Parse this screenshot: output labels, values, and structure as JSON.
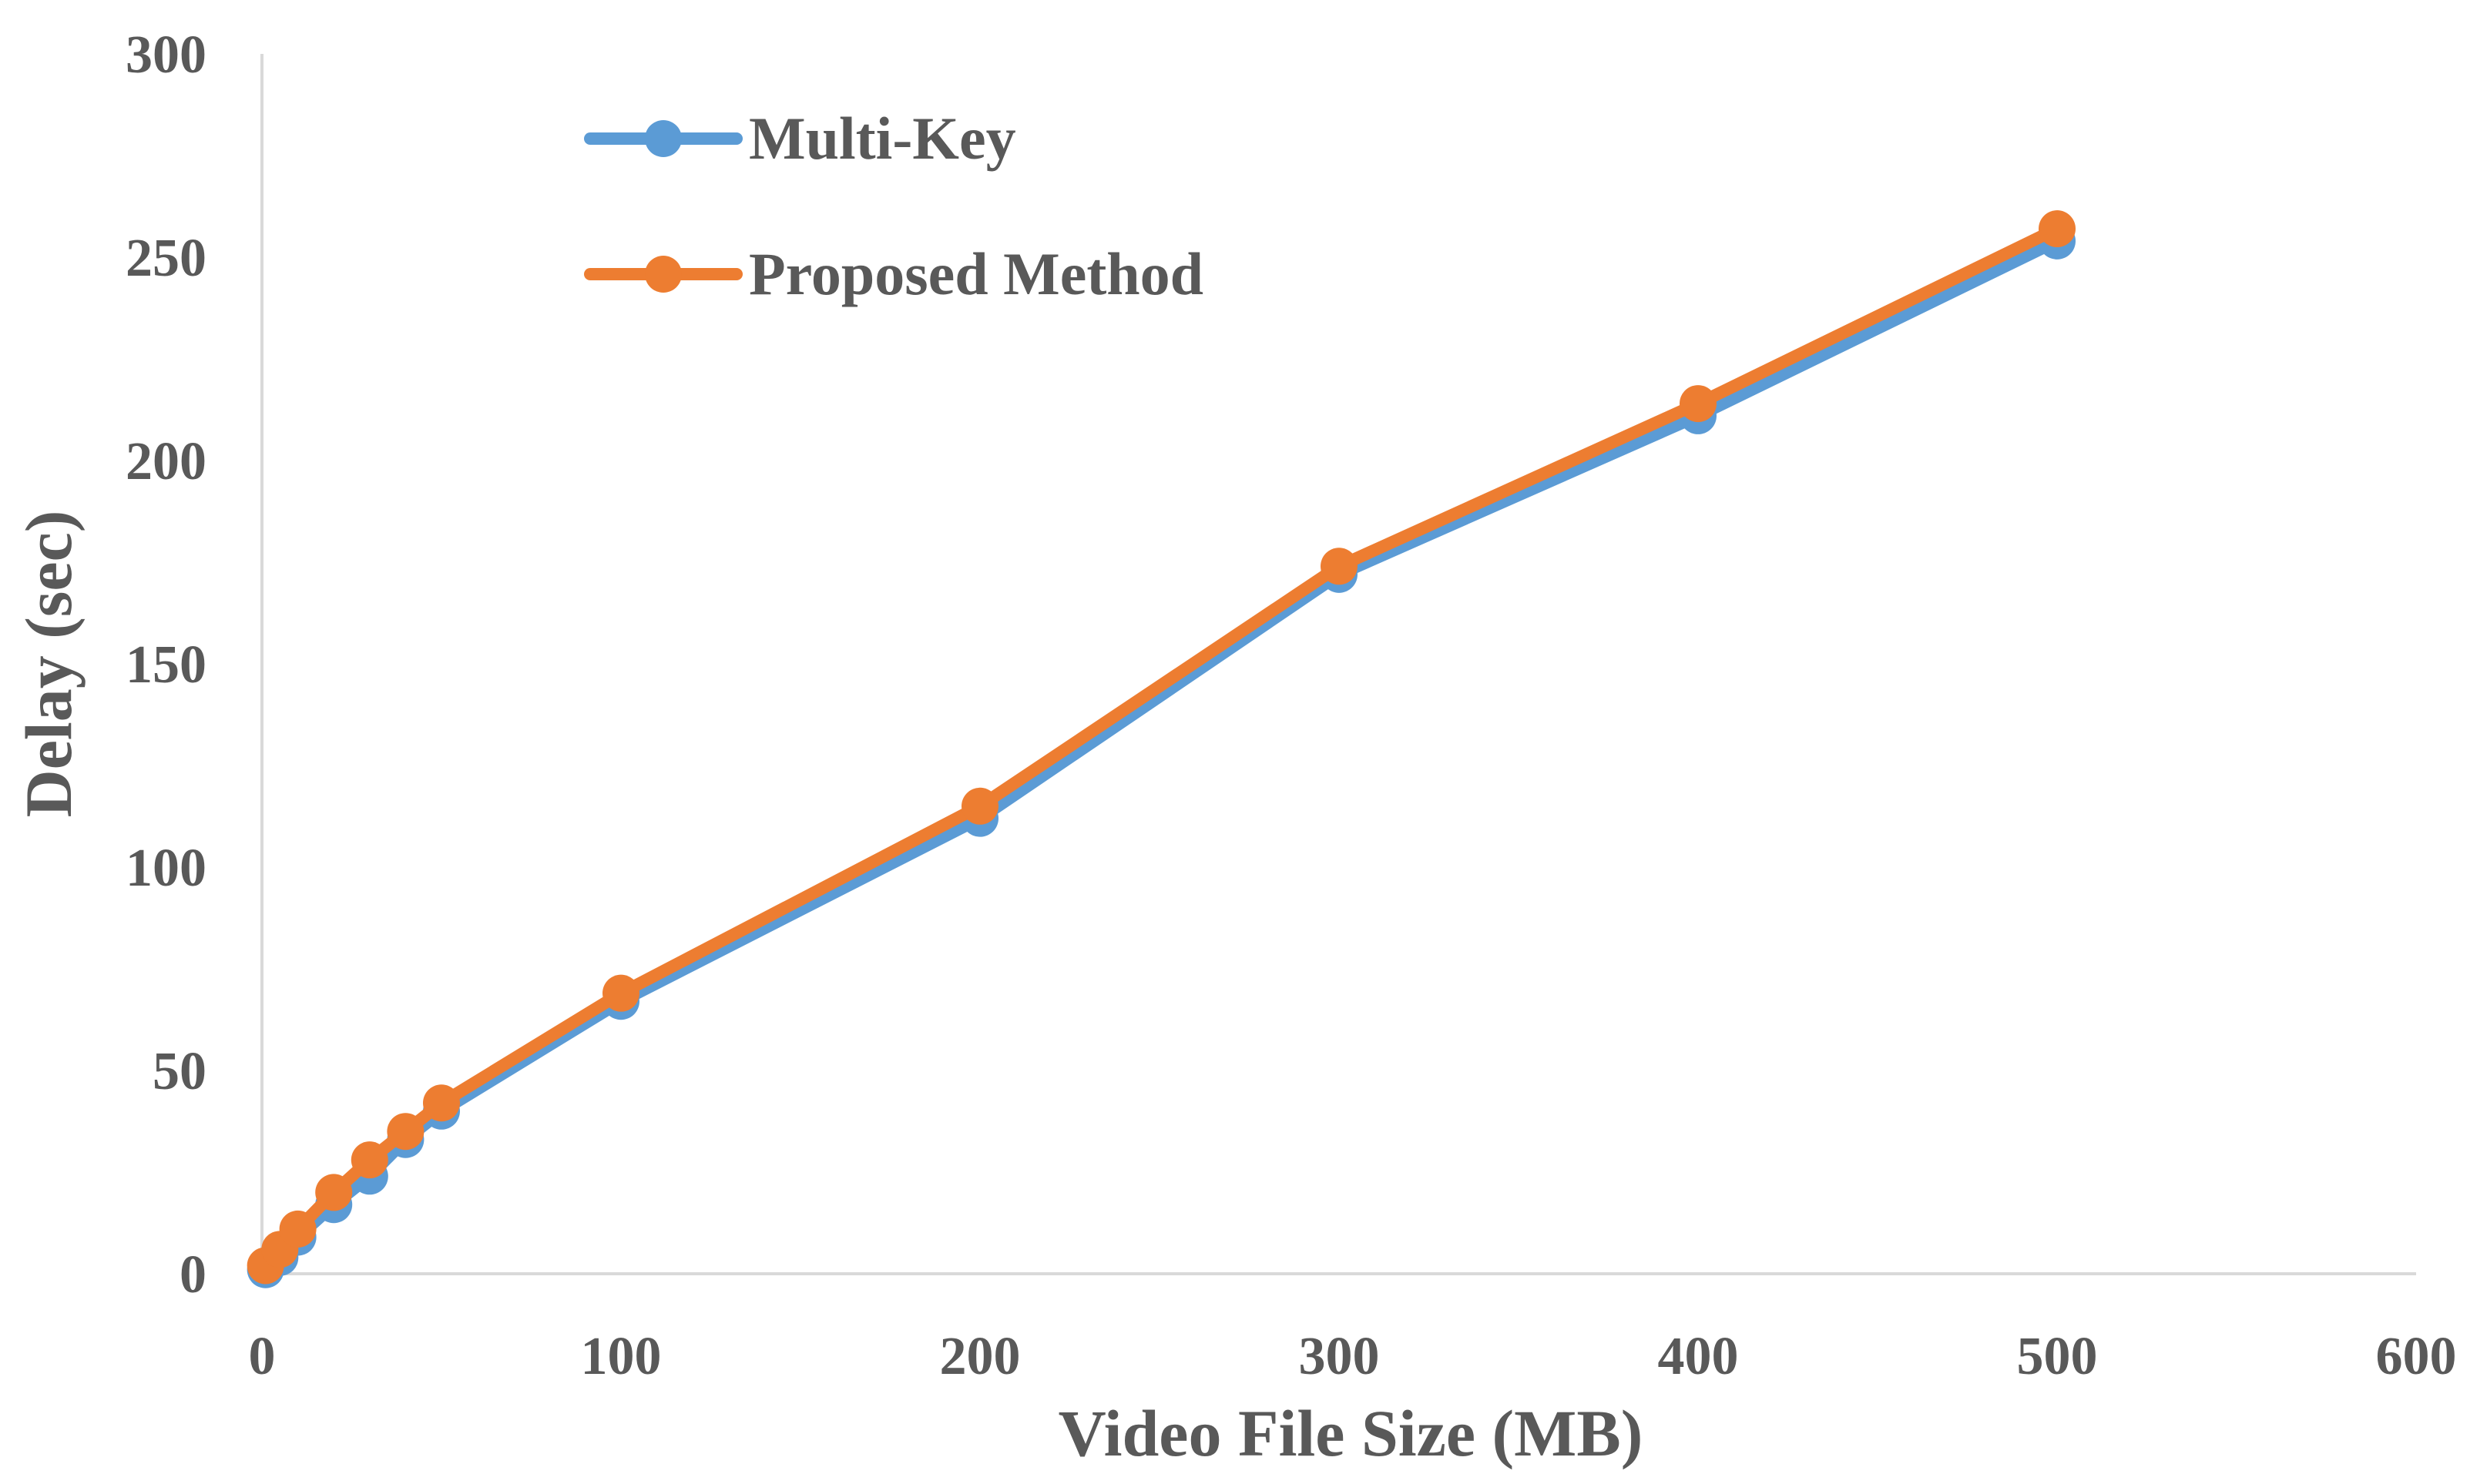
{
  "chart_data": {
    "type": "line",
    "xlabel": "Video File Size (MB)",
    "ylabel": "Delay (sec)",
    "xlim": [
      0,
      600
    ],
    "ylim": [
      0,
      300
    ],
    "xticks": [
      0,
      100,
      200,
      300,
      400,
      500,
      600
    ],
    "yticks": [
      0,
      50,
      100,
      150,
      200,
      250,
      300
    ],
    "grid": false,
    "legend_position": "top-left",
    "series": [
      {
        "name": "Multi-Key",
        "color": "#5B9BD5",
        "x": [
          1,
          5,
          10,
          20,
          30,
          40,
          50,
          100,
          200,
          300,
          400,
          500
        ],
        "y": [
          1,
          4,
          9,
          17,
          24,
          33,
          40,
          67,
          112,
          172,
          211,
          254
        ]
      },
      {
        "name": "Proposed Method",
        "color": "#ED7D31",
        "x": [
          1,
          5,
          10,
          20,
          30,
          40,
          50,
          100,
          200,
          300,
          400,
          500
        ],
        "y": [
          2,
          6,
          11,
          20,
          28,
          35,
          42,
          69,
          115,
          174,
          214,
          257
        ]
      }
    ]
  }
}
